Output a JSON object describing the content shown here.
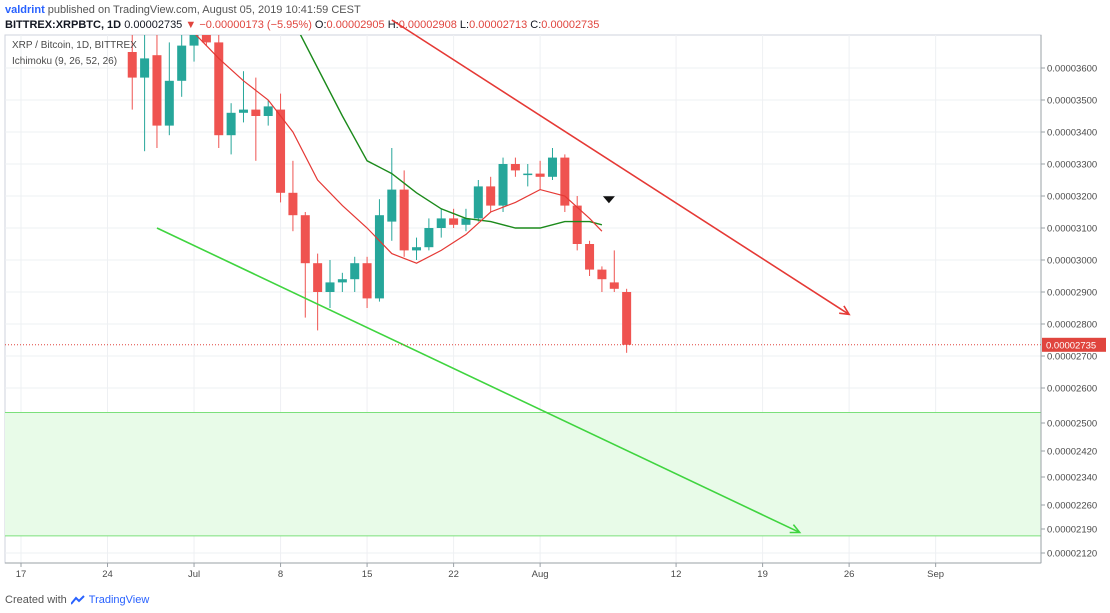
{
  "header": {
    "author": "valdrint",
    "published_text": "published on TradingView.com, August 05, 2019 10:41:59 CEST"
  },
  "quote": {
    "symbol_interval": "BITTREX:XRPBTC, 1D",
    "last": "0.00002735",
    "change": "▼ −0.00000173 (−5.95%)",
    "o_label": "O:",
    "o": "0.00002905",
    "h_label": "H:",
    "h": "0.00002908",
    "l_label": "L:",
    "l": "0.00002713",
    "c_label": "C:",
    "c": "0.00002735"
  },
  "pane_title": "XRP / Bitcoin, 1D, BITTREX",
  "indicator": "Ichimoku (9, 26, 52, 26)",
  "footer": {
    "created_with": "Created with",
    "brand": "TradingView"
  },
  "colors": {
    "up": "#26a69a",
    "down": "#ef5350",
    "conversion": "#e53935",
    "base": "#1b8a1b",
    "resistance": "#e53935",
    "support": "#3fd43f",
    "zone_fill": "#e8fbe8",
    "zone_line": "#7be07b",
    "price_label_bg": "#e0453e"
  },
  "chart_data": {
    "type": "candlestick",
    "x_axis_labels": [
      {
        "label": "17",
        "day": 0
      },
      {
        "label": "24",
        "day": 7
      },
      {
        "label": "Jul",
        "day": 14
      },
      {
        "label": "8",
        "day": 21
      },
      {
        "label": "15",
        "day": 28
      },
      {
        "label": "22",
        "day": 35
      },
      {
        "label": "Aug",
        "day": 42
      },
      {
        "label": "12",
        "day": 53
      },
      {
        "label": "19",
        "day": 60
      },
      {
        "label": "26",
        "day": 67
      },
      {
        "label": "Sep",
        "day": 74
      }
    ],
    "y_axis_labels": [
      "0.00003600",
      "0.00003500",
      "0.00003400",
      "0.00003300",
      "0.00003200",
      "0.00003100",
      "0.00003000",
      "0.00002900",
      "0.00002800",
      "0.00002700",
      "0.00002600",
      "0.00002500",
      "0.00002420",
      "0.00002340",
      "0.00002260",
      "0.00002190",
      "0.00002120"
    ],
    "last_price": 2.735e-05,
    "last_price_label": "0.00002735",
    "ohlc": [
      {
        "day": 9,
        "o": 3.65e-05,
        "h": 3.75e-05,
        "l": 3.47e-05,
        "c": 3.57e-05
      },
      {
        "day": 10,
        "o": 3.57e-05,
        "h": 3.71e-05,
        "l": 3.34e-05,
        "c": 3.63e-05
      },
      {
        "day": 11,
        "o": 3.64e-05,
        "h": 3.71e-05,
        "l": 3.35e-05,
        "c": 3.42e-05
      },
      {
        "day": 12,
        "o": 3.42e-05,
        "h": 3.68e-05,
        "l": 3.39e-05,
        "c": 3.56e-05
      },
      {
        "day": 13,
        "o": 3.56e-05,
        "h": 3.72e-05,
        "l": 3.51e-05,
        "c": 3.67e-05
      },
      {
        "day": 14,
        "o": 3.67e-05,
        "h": 3.74e-05,
        "l": 3.62e-05,
        "c": 3.71e-05
      },
      {
        "day": 15,
        "o": 3.71e-05,
        "h": 3.74e-05,
        "l": 3.67e-05,
        "c": 3.68e-05
      },
      {
        "day": 16,
        "o": 3.68e-05,
        "h": 3.72e-05,
        "l": 3.35e-05,
        "c": 3.39e-05
      },
      {
        "day": 17,
        "o": 3.39e-05,
        "h": 3.49e-05,
        "l": 3.33e-05,
        "c": 3.46e-05
      },
      {
        "day": 18,
        "o": 3.46e-05,
        "h": 3.59e-05,
        "l": 3.43e-05,
        "c": 3.47e-05
      },
      {
        "day": 19,
        "o": 3.47e-05,
        "h": 3.57e-05,
        "l": 3.31e-05,
        "c": 3.45e-05
      },
      {
        "day": 20,
        "o": 3.45e-05,
        "h": 3.5e-05,
        "l": 3.42e-05,
        "c": 3.48e-05
      },
      {
        "day": 21,
        "o": 3.47e-05,
        "h": 3.52e-05,
        "l": 3.18e-05,
        "c": 3.21e-05
      },
      {
        "day": 22,
        "o": 3.21e-05,
        "h": 3.31e-05,
        "l": 3.09e-05,
        "c": 3.14e-05
      },
      {
        "day": 23,
        "o": 3.14e-05,
        "h": 3.15e-05,
        "l": 2.82e-05,
        "c": 2.99e-05
      },
      {
        "day": 24,
        "o": 2.99e-05,
        "h": 3.02e-05,
        "l": 2.78e-05,
        "c": 2.9e-05
      },
      {
        "day": 25,
        "o": 2.9e-05,
        "h": 3e-05,
        "l": 2.85e-05,
        "c": 2.93e-05
      },
      {
        "day": 26,
        "o": 2.93e-05,
        "h": 2.96e-05,
        "l": 2.9e-05,
        "c": 2.94e-05
      },
      {
        "day": 27,
        "o": 2.94e-05,
        "h": 3.01e-05,
        "l": 2.9e-05,
        "c": 2.99e-05
      },
      {
        "day": 28,
        "o": 2.99e-05,
        "h": 3.01e-05,
        "l": 2.85e-05,
        "c": 2.88e-05
      },
      {
        "day": 29,
        "o": 2.88e-05,
        "h": 3.19e-05,
        "l": 2.87e-05,
        "c": 3.14e-05
      },
      {
        "day": 30,
        "o": 3.12e-05,
        "h": 3.35e-05,
        "l": 3.06e-05,
        "c": 3.22e-05
      },
      {
        "day": 31,
        "o": 3.22e-05,
        "h": 3.28e-05,
        "l": 3.01e-05,
        "c": 3.03e-05
      },
      {
        "day": 32,
        "o": 3.03e-05,
        "h": 3.07e-05,
        "l": 3e-05,
        "c": 3.04e-05
      },
      {
        "day": 33,
        "o": 3.04e-05,
        "h": 3.13e-05,
        "l": 3.03e-05,
        "c": 3.1e-05
      },
      {
        "day": 34,
        "o": 3.1e-05,
        "h": 3.16e-05,
        "l": 3.07e-05,
        "c": 3.13e-05
      },
      {
        "day": 35,
        "o": 3.13e-05,
        "h": 3.16e-05,
        "l": 3.1e-05,
        "c": 3.11e-05
      },
      {
        "day": 36,
        "o": 3.11e-05,
        "h": 3.16e-05,
        "l": 3.09e-05,
        "c": 3.13e-05
      },
      {
        "day": 37,
        "o": 3.13e-05,
        "h": 3.25e-05,
        "l": 3.12e-05,
        "c": 3.23e-05
      },
      {
        "day": 38,
        "o": 3.23e-05,
        "h": 3.26e-05,
        "l": 3.15e-05,
        "c": 3.17e-05
      },
      {
        "day": 39,
        "o": 3.17e-05,
        "h": 3.32e-05,
        "l": 3.15e-05,
        "c": 3.3e-05
      },
      {
        "day": 40,
        "o": 3.3e-05,
        "h": 3.32e-05,
        "l": 3.26e-05,
        "c": 3.28e-05
      },
      {
        "day": 41,
        "o": 3.27e-05,
        "h": 3.3e-05,
        "l": 3.23e-05,
        "c": 3.27e-05
      },
      {
        "day": 42,
        "o": 3.27e-05,
        "h": 3.31e-05,
        "l": 3.22e-05,
        "c": 3.26e-05
      },
      {
        "day": 43,
        "o": 3.26e-05,
        "h": 3.35e-05,
        "l": 3.25e-05,
        "c": 3.32e-05
      },
      {
        "day": 44,
        "o": 3.32e-05,
        "h": 3.33e-05,
        "l": 3.15e-05,
        "c": 3.17e-05
      },
      {
        "day": 45,
        "o": 3.17e-05,
        "h": 3.2e-05,
        "l": 3.03e-05,
        "c": 3.05e-05
      },
      {
        "day": 46,
        "o": 3.05e-05,
        "h": 3.06e-05,
        "l": 2.95e-05,
        "c": 2.97e-05
      },
      {
        "day": 47,
        "o": 2.97e-05,
        "h": 2.98e-05,
        "l": 2.9e-05,
        "c": 2.94e-05
      },
      {
        "day": 48,
        "o": 2.93e-05,
        "h": 3.03e-05,
        "l": 2.9e-05,
        "c": 2.91e-05
      },
      {
        "day": 49,
        "o": 2.9e-05,
        "h": 2.91e-05,
        "l": 2.71e-05,
        "c": 2.735e-05
      }
    ],
    "ichimoku_conversion": [
      {
        "day": 14,
        "v": 3.71e-05
      },
      {
        "day": 16,
        "v": 3.63e-05
      },
      {
        "day": 18,
        "v": 3.56e-05
      },
      {
        "day": 20,
        "v": 3.5e-05
      },
      {
        "day": 22,
        "v": 3.4e-05
      },
      {
        "day": 24,
        "v": 3.25e-05
      },
      {
        "day": 26,
        "v": 3.17e-05
      },
      {
        "day": 28,
        "v": 3.1e-05
      },
      {
        "day": 30,
        "v": 3.02e-05
      },
      {
        "day": 32,
        "v": 2.99e-05
      },
      {
        "day": 34,
        "v": 3.03e-05
      },
      {
        "day": 36,
        "v": 3.08e-05
      },
      {
        "day": 38,
        "v": 3.15e-05
      },
      {
        "day": 40,
        "v": 3.18e-05
      },
      {
        "day": 42,
        "v": 3.22e-05
      },
      {
        "day": 44,
        "v": 3.2e-05
      },
      {
        "day": 46,
        "v": 3.13e-05
      },
      {
        "day": 47,
        "v": 3.09e-05
      }
    ],
    "ichimoku_base": [
      {
        "day": 22,
        "v": 3.75e-05
      },
      {
        "day": 24,
        "v": 3.6e-05
      },
      {
        "day": 26,
        "v": 3.45e-05
      },
      {
        "day": 28,
        "v": 3.31e-05
      },
      {
        "day": 30,
        "v": 3.27e-05
      },
      {
        "day": 32,
        "v": 3.21e-05
      },
      {
        "day": 34,
        "v": 3.16e-05
      },
      {
        "day": 36,
        "v": 3.13e-05
      },
      {
        "day": 38,
        "v": 3.12e-05
      },
      {
        "day": 40,
        "v": 3.1e-05
      },
      {
        "day": 42,
        "v": 3.1e-05
      },
      {
        "day": 44,
        "v": 3.12e-05
      },
      {
        "day": 46,
        "v": 3.12e-05
      },
      {
        "day": 47,
        "v": 3.11e-05
      }
    ],
    "resistance_line": {
      "from": {
        "day": 30,
        "v": 3.75e-05
      },
      "to": {
        "day": 67,
        "v": 2.83e-05
      }
    },
    "support_line": {
      "from": {
        "day": 11,
        "v": 3.1e-05
      },
      "to": {
        "day": 63,
        "v": 2.18e-05
      }
    },
    "support_zone": {
      "top": 2.53e-05,
      "bottom": 2.17e-05
    },
    "marker": {
      "day": 47,
      "v": 3.19e-05
    }
  }
}
